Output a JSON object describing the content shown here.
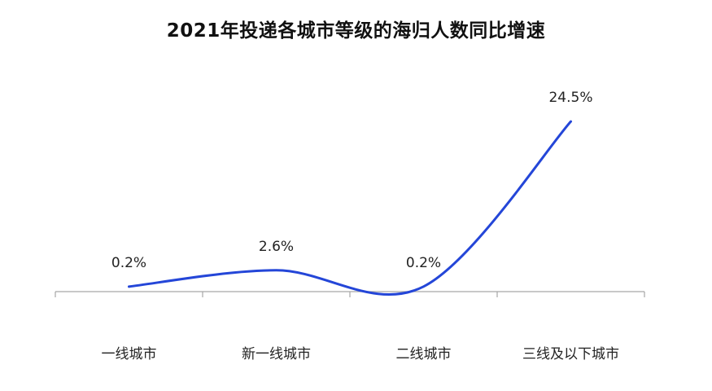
{
  "chart_data": {
    "type": "line",
    "title": "2021年投递各城市等级的海归人数同比增速",
    "categories": [
      "一线城市",
      "新一线城市",
      "二线城市",
      "三线及以下城市"
    ],
    "values": [
      0.2,
      2.6,
      0.2,
      24.5
    ],
    "data_labels": [
      "0.2%",
      "2.6%",
      "0.2%",
      "24.5%"
    ],
    "xlabel": "",
    "ylabel": "",
    "ylim": [
      -1.5,
      25
    ],
    "smooth": true,
    "grid": false,
    "legend": "none",
    "colors": {
      "line": "#2446d8",
      "axis": "#a6a6a6"
    }
  }
}
